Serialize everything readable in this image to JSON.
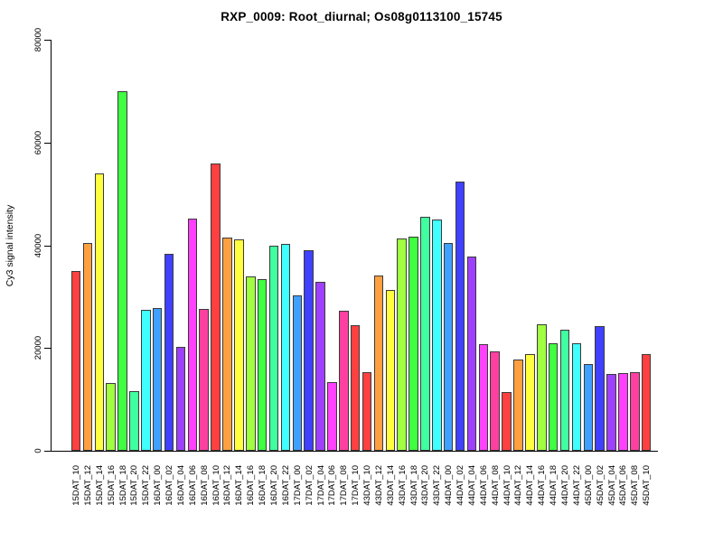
{
  "chart_data": {
    "type": "bar",
    "title": "RXP_0009: Root_diurnal; Os08g0113100_15745",
    "ylabel": "Cy3 signal intensity",
    "xlabel": "",
    "ylim": [
      0,
      80000
    ],
    "yticks": [
      0,
      20000,
      40000,
      60000,
      80000
    ],
    "ytick_labels": [
      "0",
      "20000",
      "40000",
      "60000",
      "80000"
    ],
    "grid": false,
    "legend": "none",
    "bar_border_color": "#3a3a3a",
    "palette": [
      "#FF4040",
      "#FFA040",
      "#FFFF40",
      "#A0FF40",
      "#40FF40",
      "#40FFA0",
      "#40FFFF",
      "#40A0FF",
      "#4040FF",
      "#A040FF",
      "#FF40FF",
      "#FF40A0"
    ],
    "categories": [
      "15DAT_10",
      "15DAT_12",
      "15DAT_14",
      "15DAT_16",
      "15DAT_18",
      "15DAT_20",
      "15DAT_22",
      "16DAT_00",
      "16DAT_02",
      "16DAT_04",
      "16DAT_06",
      "16DAT_08",
      "16DAT_10",
      "16DAT_12",
      "16DAT_14",
      "16DAT_16",
      "16DAT_18",
      "16DAT_20",
      "16DAT_22",
      "17DAT_00",
      "17DAT_02",
      "17DAT_04",
      "17DAT_06",
      "17DAT_08",
      "17DAT_10",
      "43DAT_10",
      "43DAT_12",
      "43DAT_14",
      "43DAT_16",
      "43DAT_18",
      "43DAT_20",
      "43DAT_22",
      "44DAT_00",
      "44DAT_02",
      "44DAT_04",
      "44DAT_06",
      "44DAT_08",
      "44DAT_10",
      "44DAT_12",
      "44DAT_14",
      "44DAT_16",
      "44DAT_18",
      "44DAT_20",
      "44DAT_22",
      "45DAT_00",
      "45DAT_02",
      "45DAT_04",
      "45DAT_06",
      "45DAT_08",
      "45DAT_10"
    ],
    "values": [
      35000,
      40400,
      53900,
      13200,
      70000,
      11600,
      27400,
      27800,
      38400,
      20300,
      45200,
      27700,
      55900,
      41500,
      41100,
      34000,
      33400,
      40000,
      40300,
      30200,
      39000,
      32900,
      13300,
      27200,
      24400,
      15300,
      34100,
      31300,
      41400,
      41700,
      45600,
      45100,
      40400,
      52400,
      37800,
      20800,
      19300,
      11500,
      17800,
      18900,
      24700,
      20900,
      23500,
      20900,
      16900,
      24300,
      14900,
      15200,
      15300,
      18900
    ],
    "colors": [
      "#FF4040",
      "#FFA040",
      "#FFFF40",
      "#A0FF40",
      "#40FF40",
      "#40FFA0",
      "#40FFFF",
      "#40A0FF",
      "#4040FF",
      "#A040FF",
      "#FF40FF",
      "#FF40A0",
      "#FF4040",
      "#FFA040",
      "#FFFF40",
      "#A0FF40",
      "#40FF40",
      "#40FFA0",
      "#40FFFF",
      "#40A0FF",
      "#4040FF",
      "#A040FF",
      "#FF40FF",
      "#FF40A0",
      "#FF4040",
      "#FF4040",
      "#FFA040",
      "#FFFF40",
      "#A0FF40",
      "#40FF40",
      "#40FFA0",
      "#40FFFF",
      "#40A0FF",
      "#4040FF",
      "#A040FF",
      "#FF40FF",
      "#FF40A0",
      "#FF4040",
      "#FFA040",
      "#FFFF40",
      "#A0FF40",
      "#40FF40",
      "#40FFA0",
      "#40FFFF",
      "#40A0FF",
      "#4040FF",
      "#A040FF",
      "#FF40FF",
      "#FF40A0",
      "#FF4040"
    ]
  }
}
